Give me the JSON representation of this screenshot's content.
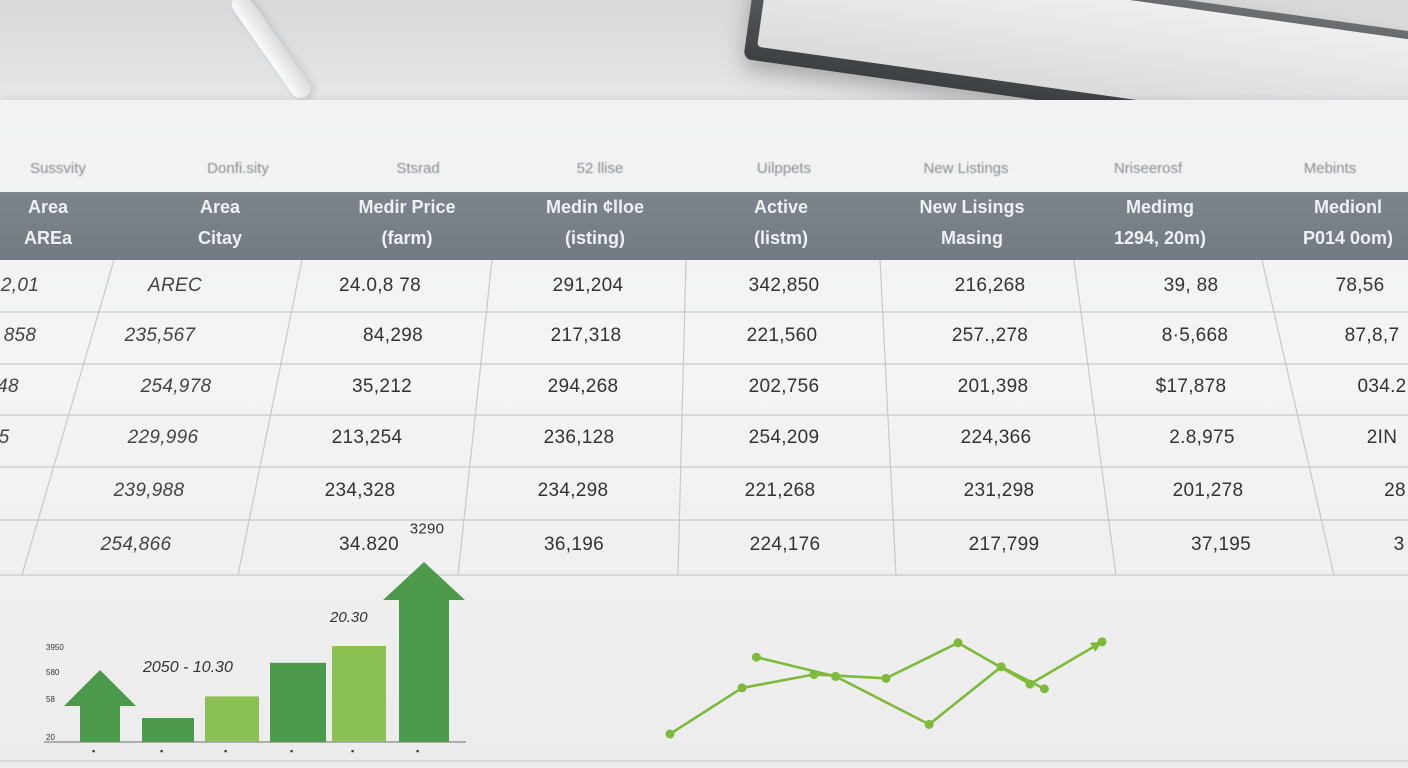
{
  "table": {
    "top_headers": [
      "Sussvity",
      "Donfi.sity",
      "Stsrad",
      "52 llise",
      "Uilppets",
      "New Listings",
      "Nriseerosf",
      "Mebints"
    ],
    "columns": [
      {
        "line1": "Area",
        "line2": "AREa"
      },
      {
        "line1": "Area",
        "line2": "Citay"
      },
      {
        "line1": "Medir Price",
        "line2": "(farm)"
      },
      {
        "line1": "Medin ¢lloe",
        "line2": "(isting)"
      },
      {
        "line1": "Active",
        "line2": "(listm)"
      },
      {
        "line1": "New Lisings",
        "line2": "Masing"
      },
      {
        "line1": "Medimg",
        "line2": "1294, 20m)"
      },
      {
        "line1": "Medionl",
        "line2": "P014 0om)"
      }
    ],
    "rows": [
      [
        "2,01",
        "AREC",
        "24.0,8 78",
        "291,204",
        "342,850",
        "216,268",
        "39, 88",
        "78,56"
      ],
      [
        "858",
        "235,567",
        "84,298",
        "217,318",
        "221,560",
        "257.,278",
        "8·5,668",
        "87,8,7"
      ],
      [
        "48",
        "254,978",
        "35,212",
        "294,268",
        "202,756",
        "201,398",
        "$17,878",
        "034.2"
      ],
      [
        "5",
        "229,996",
        "213,254",
        "236,128",
        "254,209",
        "224,366",
        "2.8,975",
        "2IN"
      ],
      [
        "",
        "239,988",
        "234,328",
        "234,298",
        "221,268",
        "231,298",
        "201,278",
        "28"
      ],
      [
        "",
        "254,866",
        "34.820",
        "36,196",
        "224,176",
        "217,799",
        "37,195",
        "3"
      ]
    ],
    "annotation": "3290"
  },
  "chart_data": [
    {
      "type": "bar",
      "categories": [
        "",
        "",
        "",
        "",
        "",
        ""
      ],
      "values": [
        30,
        10,
        19,
        33,
        40,
        75
      ],
      "series_colors": [
        "#4e9a4c",
        "#4e9a4c",
        "#8bc152",
        "#4e9a4c",
        "#8bc152",
        "#4e9a4c"
      ],
      "arrows": [
        true,
        false,
        false,
        false,
        false,
        true
      ],
      "annotations": [
        "2050 - 10.30",
        "20.30"
      ],
      "ytick_labels": [
        "3950",
        "580",
        "58",
        "20"
      ]
    },
    {
      "type": "line",
      "series": [
        {
          "values": [
            [
              0,
              0
            ],
            [
              1,
              48
            ],
            [
              2,
              62
            ],
            [
              3,
              58
            ],
            [
              4,
              95
            ],
            [
              5,
              52
            ],
            [
              6,
              96
            ]
          ],
          "color": "#7dba3a"
        },
        {
          "values": [
            [
              1.2,
              80
            ],
            [
              2.3,
              60
            ],
            [
              3.6,
              10
            ],
            [
              4.6,
              70
            ],
            [
              5.2,
              47
            ]
          ],
          "color": "#7dba3a"
        }
      ]
    }
  ],
  "colors": {
    "header_bg": "#7a818a",
    "green_dark": "#4e9a4c",
    "green_light": "#8bc152",
    "line_green": "#7dba3a"
  }
}
